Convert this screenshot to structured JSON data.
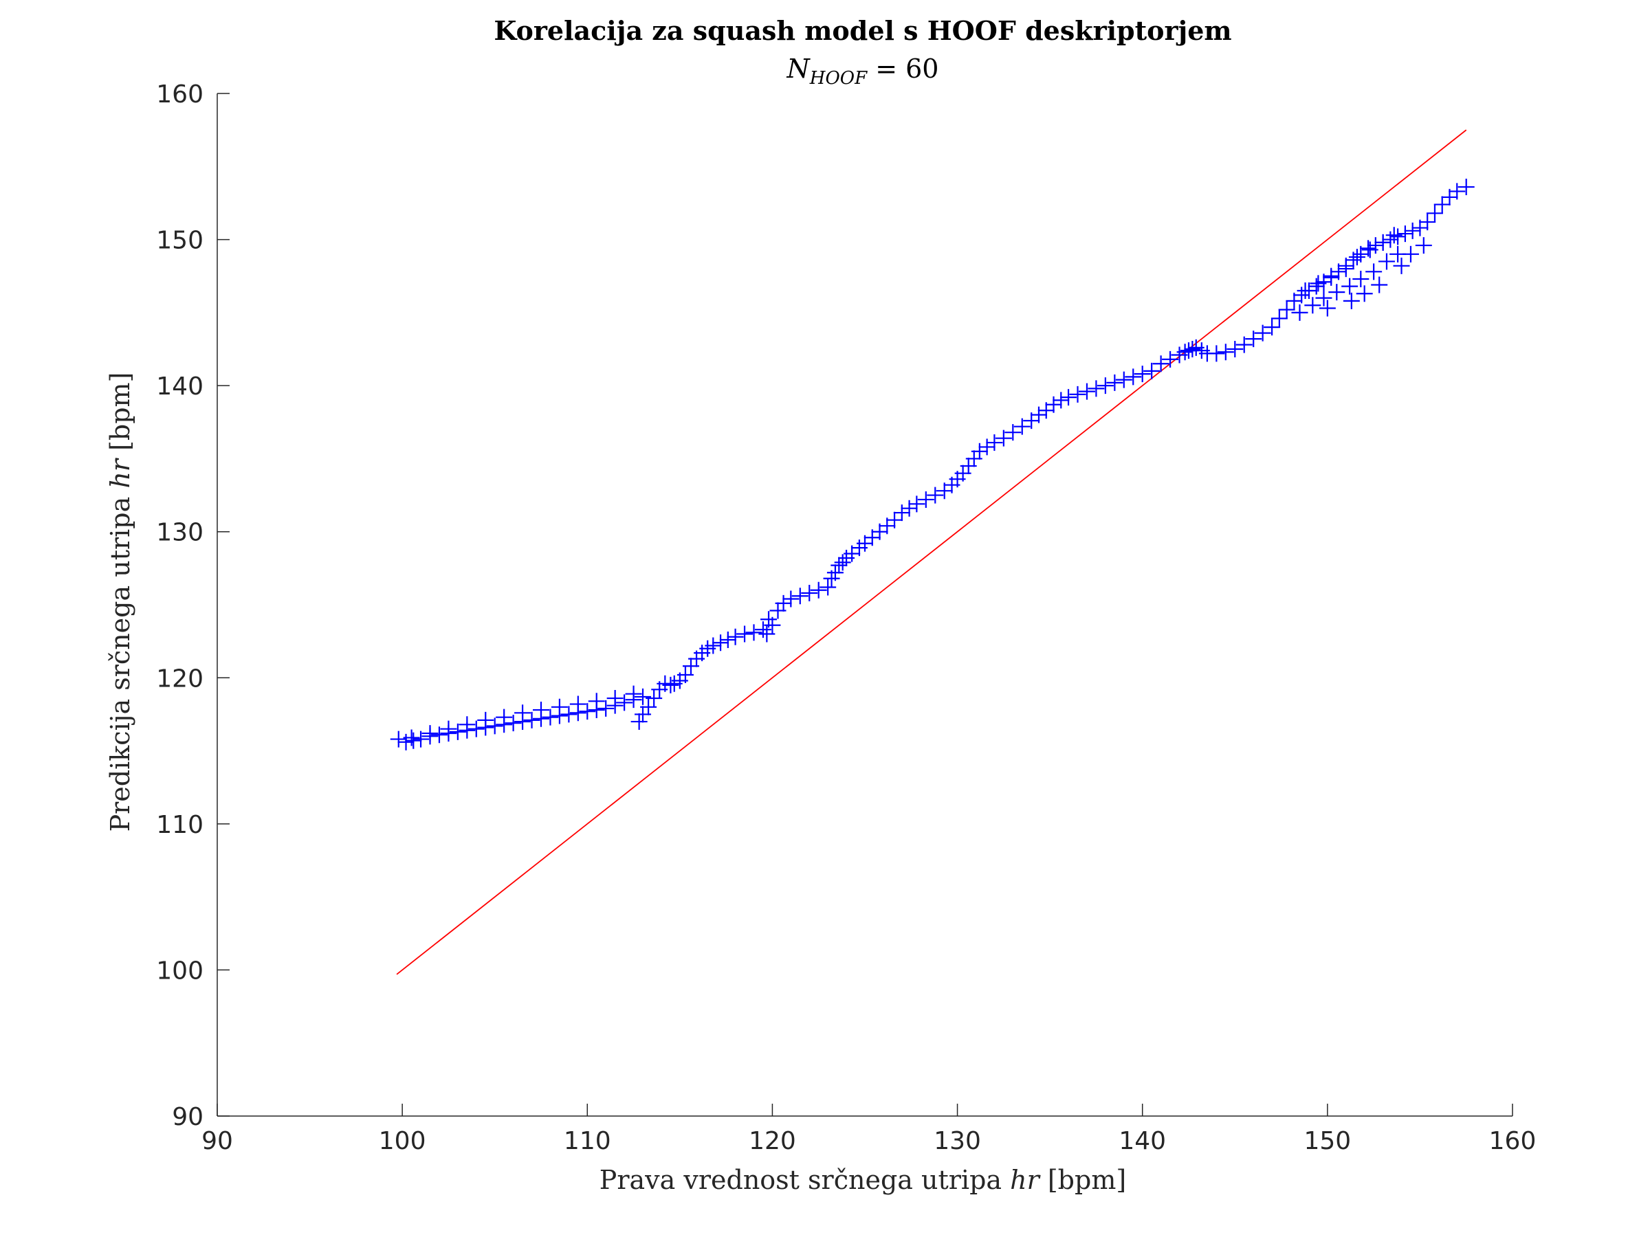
{
  "chart_data": {
    "type": "scatter",
    "title": "Korelacija za squash model s HOOF deskriptorjem",
    "subtitle": {
      "main": "N",
      "subscript": "HOOF",
      "rest": " = 60"
    },
    "xlabel": {
      "text": "Prava vrednost srčnega utripa ",
      "italic": "hr",
      "unit": " [bpm]"
    },
    "ylabel": {
      "text": "Predikcija srčnega utripa ",
      "italic": "hr",
      "unit": " [bpm]"
    },
    "xlim": [
      90,
      160
    ],
    "ylim": [
      90,
      160
    ],
    "xticks": [
      90,
      100,
      110,
      120,
      130,
      140,
      150,
      160
    ],
    "yticks": [
      90,
      100,
      110,
      120,
      130,
      140,
      150,
      160
    ],
    "grid": false,
    "marker": "+",
    "series_color": "#0000ff",
    "reference_color": "#ff0000",
    "reference_line": {
      "x": [
        99.7,
        157.5
      ],
      "y": [
        99.7,
        157.5
      ]
    },
    "series": [
      {
        "x": [
          99.8,
          100.2,
          100.6,
          101.0,
          101.5,
          102.0,
          102.5,
          103.0,
          103.5,
          104.0,
          104.5,
          105.0,
          105.5,
          106.0,
          106.5,
          107.0,
          107.5,
          108.0,
          108.5,
          109.0,
          109.5,
          110.0,
          110.5,
          111.0,
          111.5,
          112.0,
          112.5,
          113.0,
          100.5,
          101.5,
          102.5,
          103.5,
          104.5,
          105.5,
          106.5,
          107.5,
          108.5,
          109.5,
          110.5,
          111.5,
          112.5,
          112.8,
          113.0,
          113.3,
          113.6,
          113.9,
          114.2,
          114.5,
          114.7,
          115.0,
          115.3,
          115.6,
          115.9,
          116.2,
          116.5,
          116.8,
          117.2,
          117.6,
          118.0,
          118.5,
          119.0,
          119.5,
          120.0,
          119.7,
          119.8,
          120.3,
          120.6,
          121.0,
          121.5,
          122.0,
          122.5,
          123.0,
          123.2,
          123.4,
          123.6,
          123.8,
          124.0,
          124.3,
          124.7,
          125.0,
          125.4,
          125.8,
          126.2,
          126.6,
          127.0,
          127.4,
          127.8,
          128.3,
          128.8,
          129.3,
          129.7,
          130.0,
          130.3,
          130.6,
          130.9,
          131.2,
          131.6,
          132.0,
          132.5,
          133.0,
          133.5,
          134.0,
          134.4,
          134.8,
          135.2,
          135.6,
          136.0,
          136.5,
          137.0,
          137.5,
          138.0,
          138.5,
          139.0,
          139.5,
          140.0,
          140.5,
          141.0,
          141.5,
          142.0,
          142.3,
          142.5,
          142.7,
          142.9,
          143.2,
          143.5,
          144.0,
          144.5,
          145.0,
          145.5,
          146.0,
          146.5,
          147.0,
          147.4,
          147.8,
          148.2,
          148.6,
          149.0,
          149.4,
          149.8,
          150.2,
          150.6,
          151.0,
          151.4,
          151.8,
          152.2,
          152.6,
          153.0,
          153.4,
          153.8,
          154.2,
          154.6,
          155.0,
          155.4,
          155.8,
          156.2,
          156.6,
          157.0,
          157.5,
          148.5,
          149.2,
          149.8,
          150.5,
          151.2,
          151.8,
          152.5,
          153.2,
          153.8,
          148.8,
          149.5,
          150.2,
          151.0,
          151.6,
          152.3,
          153.0,
          153.6,
          150.0,
          151.3,
          152.0,
          152.8,
          154.0,
          154.5,
          155.2
        ],
        "y": [
          115.8,
          115.6,
          115.7,
          115.8,
          116.0,
          116.1,
          116.2,
          116.3,
          116.4,
          116.5,
          116.6,
          116.7,
          116.8,
          116.9,
          117.0,
          117.1,
          117.2,
          117.3,
          117.4,
          117.5,
          117.6,
          117.7,
          117.8,
          117.9,
          118.1,
          118.3,
          118.5,
          118.7,
          115.9,
          116.2,
          116.5,
          116.8,
          117.1,
          117.3,
          117.6,
          117.8,
          118.0,
          118.2,
          118.4,
          118.6,
          118.9,
          117.0,
          117.5,
          118.0,
          118.6,
          119.2,
          119.6,
          119.5,
          119.6,
          119.8,
          120.2,
          120.8,
          121.3,
          121.7,
          122.0,
          122.2,
          122.4,
          122.6,
          122.8,
          123.0,
          123.1,
          123.3,
          123.6,
          123.0,
          124.0,
          124.6,
          125.1,
          125.4,
          125.6,
          125.8,
          126.0,
          126.2,
          126.8,
          127.2,
          127.7,
          127.9,
          128.2,
          128.5,
          128.9,
          129.2,
          129.6,
          130.0,
          130.4,
          130.8,
          131.3,
          131.6,
          131.9,
          132.2,
          132.5,
          132.8,
          133.2,
          133.6,
          134.0,
          134.5,
          135.0,
          135.5,
          135.8,
          136.1,
          136.4,
          136.8,
          137.2,
          137.6,
          138.0,
          138.3,
          138.7,
          139.0,
          139.2,
          139.4,
          139.6,
          139.8,
          140.0,
          140.2,
          140.4,
          140.6,
          140.8,
          141.0,
          141.5,
          141.8,
          142.1,
          142.3,
          142.4,
          142.5,
          142.6,
          142.4,
          142.2,
          142.2,
          142.3,
          142.5,
          142.8,
          143.2,
          143.6,
          144.0,
          144.6,
          145.2,
          145.8,
          146.2,
          146.5,
          146.8,
          147.1,
          147.4,
          147.8,
          148.2,
          148.6,
          149.0,
          149.4,
          149.6,
          149.8,
          150.0,
          150.2,
          150.4,
          150.6,
          150.8,
          151.2,
          151.8,
          152.4,
          152.9,
          153.3,
          153.6,
          145.0,
          145.5,
          146.0,
          146.4,
          146.8,
          147.3,
          147.8,
          148.5,
          149.0,
          146.5,
          147.0,
          147.5,
          148.0,
          148.8,
          149.3,
          149.8,
          150.3,
          145.3,
          145.8,
          146.3,
          146.9,
          148.2,
          149.0,
          149.6
        ]
      }
    ]
  }
}
